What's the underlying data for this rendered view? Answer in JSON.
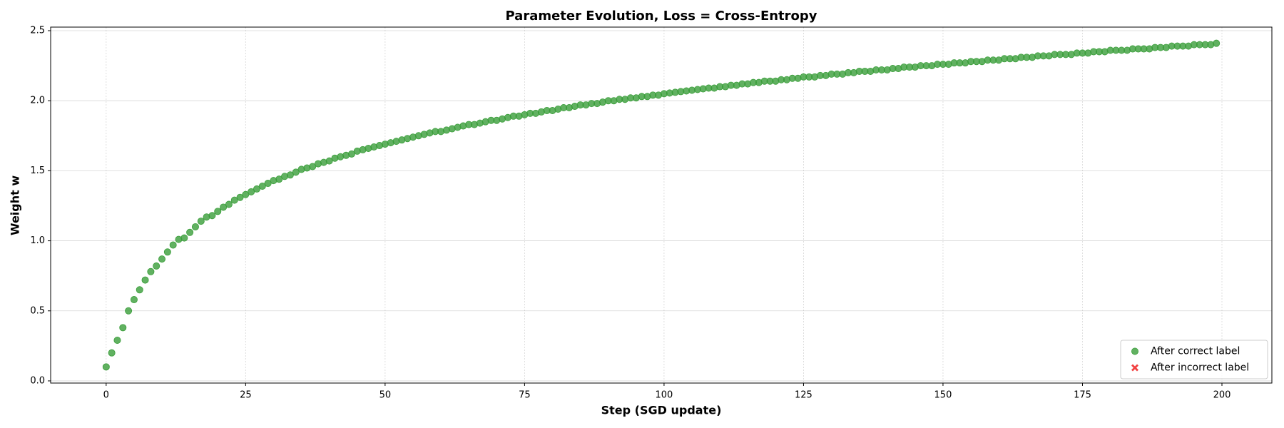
{
  "chart_data": {
    "type": "scatter",
    "title": "Parameter Evolution, Loss = Cross-Entropy",
    "x_label": "Step (SGD update)",
    "y_label": "Weight w",
    "xlim": [
      -9.95,
      208.95
    ],
    "ylim": [
      -0.0155,
      2.5255
    ],
    "xticks": [
      0,
      25,
      50,
      75,
      100,
      125,
      150,
      175,
      200
    ],
    "yticks": [
      {
        "value": 0,
        "label": "0.0"
      },
      {
        "value": 0.5,
        "label": "0.5"
      },
      {
        "value": 1,
        "label": "1.0"
      },
      {
        "value": 1.5,
        "label": "1.5"
      },
      {
        "value": 2,
        "label": "2.0"
      },
      {
        "value": 2.5,
        "label": "2.5"
      }
    ],
    "grid": true,
    "legend_position": "lower right",
    "series": [
      {
        "name": "After correct label",
        "color": "#3a9e3a",
        "marker": "circle",
        "x": [
          0,
          1,
          2,
          3,
          4,
          5,
          6,
          7,
          8,
          9,
          10,
          11,
          12,
          13,
          14,
          15,
          16,
          17,
          18,
          19,
          20,
          21,
          22,
          23,
          24,
          25,
          26,
          27,
          28,
          29,
          30,
          31,
          32,
          33,
          34,
          35,
          36,
          37,
          38,
          39,
          40,
          41,
          42,
          43,
          44,
          45,
          46,
          47,
          48,
          49,
          50,
          51,
          52,
          53,
          54,
          55,
          56,
          57,
          58,
          59,
          60,
          61,
          62,
          63,
          64,
          65,
          66,
          67,
          68,
          69,
          70,
          71,
          72,
          73,
          74,
          75,
          76,
          77,
          78,
          79,
          80,
          81,
          82,
          83,
          84,
          85,
          86,
          87,
          88,
          89,
          90,
          91,
          92,
          93,
          94,
          95,
          96,
          97,
          98,
          99,
          100,
          101,
          102,
          103,
          104,
          105,
          106,
          107,
          108,
          109,
          110,
          111,
          112,
          113,
          114,
          115,
          116,
          117,
          118,
          119,
          120,
          121,
          122,
          123,
          124,
          125,
          126,
          127,
          128,
          129,
          130,
          131,
          132,
          133,
          134,
          135,
          136,
          137,
          138,
          139,
          140,
          141,
          142,
          143,
          144,
          145,
          146,
          147,
          148,
          149,
          150,
          151,
          152,
          153,
          154,
          155,
          156,
          157,
          158,
          159,
          160,
          161,
          162,
          163,
          164,
          165,
          166,
          167,
          168,
          169,
          170,
          171,
          172,
          173,
          174,
          175,
          176,
          177,
          178,
          179,
          180,
          181,
          182,
          183,
          184,
          185,
          186,
          187,
          188,
          189,
          190,
          191,
          192,
          193,
          194,
          195,
          196,
          197,
          198,
          199
        ],
        "values": [
          0.1,
          0.2,
          0.29,
          0.38,
          0.5,
          0.58,
          0.65,
          0.72,
          0.78,
          0.82,
          0.87,
          0.92,
          0.97,
          1.01,
          1.02,
          1.06,
          1.1,
          1.14,
          1.17,
          1.18,
          1.21,
          1.24,
          1.26,
          1.29,
          1.31,
          1.33,
          1.35,
          1.37,
          1.39,
          1.41,
          1.43,
          1.44,
          1.46,
          1.47,
          1.49,
          1.51,
          1.52,
          1.53,
          1.55,
          1.56,
          1.57,
          1.59,
          1.6,
          1.61,
          1.62,
          1.64,
          1.65,
          1.66,
          1.67,
          1.68,
          1.69,
          1.7,
          1.71,
          1.72,
          1.73,
          1.74,
          1.75,
          1.76,
          1.77,
          1.78,
          1.78,
          1.79,
          1.8,
          1.81,
          1.82,
          1.83,
          1.83,
          1.84,
          1.85,
          1.86,
          1.86,
          1.87,
          1.88,
          1.89,
          1.89,
          1.9,
          1.91,
          1.91,
          1.92,
          1.93,
          1.93,
          1.94,
          1.95,
          1.95,
          1.96,
          1.97,
          1.97,
          1.98,
          1.98,
          1.99,
          2.0,
          2.0,
          2.01,
          2.01,
          2.02,
          2.02,
          2.03,
          2.03,
          2.04,
          2.04,
          2.05,
          2.055,
          2.06,
          2.065,
          2.07,
          2.075,
          2.08,
          2.085,
          2.09,
          2.09,
          2.1,
          2.1,
          2.11,
          2.11,
          2.12,
          2.12,
          2.13,
          2.13,
          2.14,
          2.14,
          2.14,
          2.15,
          2.15,
          2.16,
          2.16,
          2.17,
          2.17,
          2.17,
          2.18,
          2.18,
          2.19,
          2.19,
          2.19,
          2.2,
          2.2,
          2.21,
          2.21,
          2.21,
          2.22,
          2.22,
          2.22,
          2.23,
          2.23,
          2.24,
          2.24,
          2.24,
          2.25,
          2.25,
          2.25,
          2.26,
          2.26,
          2.26,
          2.27,
          2.27,
          2.27,
          2.28,
          2.28,
          2.28,
          2.29,
          2.29,
          2.29,
          2.3,
          2.3,
          2.3,
          2.31,
          2.31,
          2.31,
          2.32,
          2.32,
          2.32,
          2.33,
          2.33,
          2.33,
          2.33,
          2.34,
          2.34,
          2.34,
          2.35,
          2.35,
          2.35,
          2.36,
          2.36,
          2.36,
          2.36,
          2.37,
          2.37,
          2.37,
          2.37,
          2.38,
          2.38,
          2.38,
          2.39,
          2.39,
          2.39,
          2.39,
          2.4,
          2.4,
          2.4,
          2.4,
          2.41
        ]
      },
      {
        "name": "After incorrect label",
        "color": "#f02020",
        "marker": "x",
        "x": [],
        "values": []
      }
    ]
  }
}
